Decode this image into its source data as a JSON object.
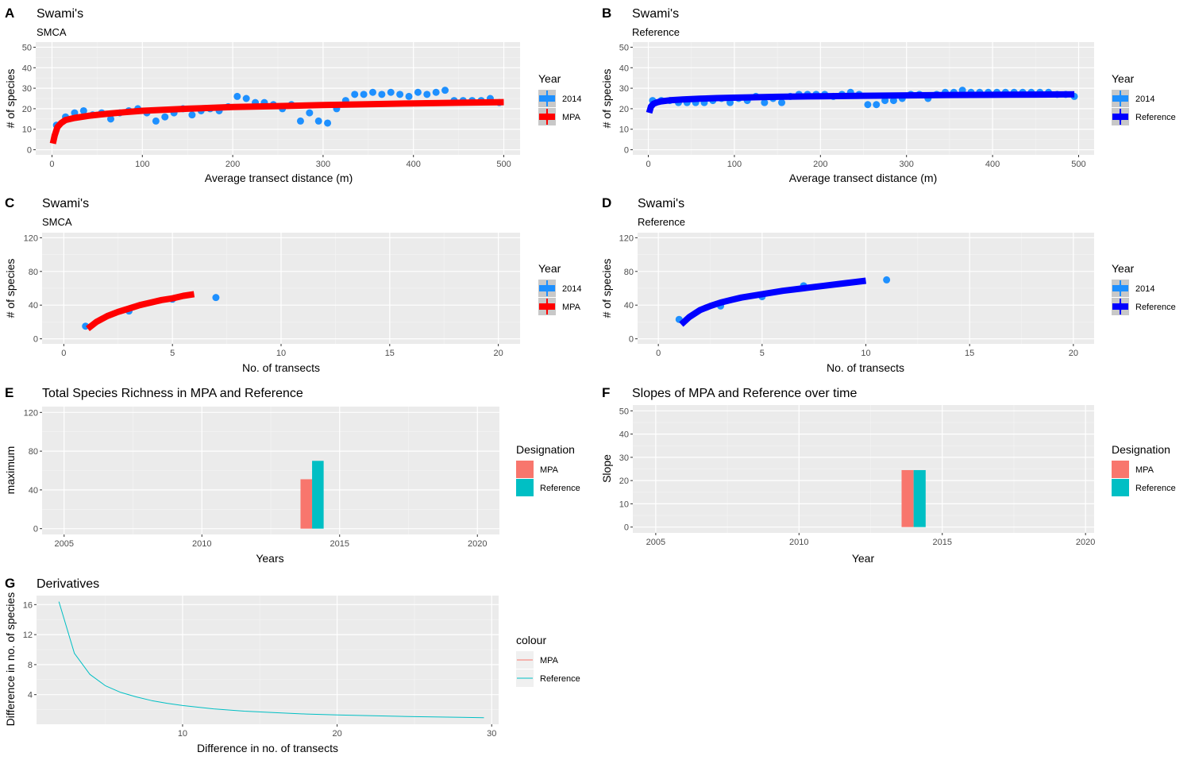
{
  "chart_data": [
    {
      "panel_tag": "A",
      "type": "scatter",
      "title": "Swami's",
      "subtitle": "SMCA",
      "xlabel": "Average transect distance (m)",
      "ylabel": "# of species",
      "xlim": [
        -18,
        518
      ],
      "ylim": [
        -2.5,
        52.5
      ],
      "xticks": [
        0,
        100,
        200,
        300,
        400,
        500
      ],
      "yticks": [
        0,
        10,
        20,
        30,
        40,
        50
      ],
      "grid": true,
      "legend": {
        "title": "Year",
        "placement": "right",
        "entries": [
          {
            "label": "2014",
            "color": "#1e90ff",
            "kind": "pointrange"
          },
          {
            "label": "MPA",
            "color": "#ff0000",
            "kind": "pointrange"
          }
        ]
      },
      "series": [
        {
          "name": "2014",
          "kind": "points",
          "color": "#1e90ff",
          "x": [
            5,
            15,
            25,
            35,
            45,
            55,
            65,
            75,
            85,
            95,
            105,
            115,
            125,
            135,
            145,
            155,
            165,
            175,
            185,
            195,
            205,
            215,
            225,
            235,
            245,
            255,
            265,
            275,
            285,
            295,
            305,
            315,
            325,
            335,
            345,
            355,
            365,
            375,
            385,
            395,
            405,
            415,
            425,
            435,
            445,
            455,
            465,
            475,
            485,
            495
          ],
          "y": [
            12,
            16,
            18,
            19,
            17,
            18,
            15,
            18,
            19,
            20,
            18,
            14,
            16,
            18,
            20,
            17,
            19,
            20,
            19,
            21,
            26,
            25,
            23,
            23,
            22,
            20,
            22,
            14,
            18,
            14,
            13,
            20,
            24,
            27,
            27,
            28,
            27,
            28,
            27,
            26,
            28,
            27,
            28,
            29,
            24,
            24,
            24,
            24,
            25,
            23
          ]
        },
        {
          "name": "MPA",
          "kind": "line",
          "color": "#ff0000",
          "x": [
            1,
            3,
            6,
            10,
            15,
            25,
            40,
            60,
            80,
            100,
            150,
            200,
            250,
            300,
            350,
            400,
            450,
            500
          ],
          "y": [
            3,
            7,
            11,
            13,
            14.5,
            15.5,
            16.5,
            17.5,
            18.3,
            19,
            20,
            20.8,
            21.3,
            21.8,
            22.2,
            22.6,
            22.9,
            23.2
          ]
        }
      ]
    },
    {
      "panel_tag": "B",
      "type": "scatter",
      "title": "Swami's",
      "subtitle": "Reference",
      "xlabel": "Average transect distance (m)",
      "ylabel": "# of species",
      "xlim": [
        -18,
        518
      ],
      "ylim": [
        -2.5,
        52.5
      ],
      "xticks": [
        0,
        100,
        200,
        300,
        400,
        500
      ],
      "yticks": [
        0,
        10,
        20,
        30,
        40,
        50
      ],
      "grid": true,
      "legend": {
        "title": "Year",
        "placement": "right",
        "entries": [
          {
            "label": "2014",
            "color": "#1e90ff",
            "kind": "pointrange"
          },
          {
            "label": "Reference",
            "color": "#0000ff",
            "kind": "pointrange"
          }
        ]
      },
      "series": [
        {
          "name": "2014",
          "kind": "points",
          "color": "#1e90ff",
          "x": [
            5,
            15,
            25,
            35,
            45,
            55,
            65,
            75,
            85,
            95,
            105,
            115,
            125,
            135,
            145,
            155,
            165,
            175,
            185,
            195,
            205,
            215,
            225,
            235,
            245,
            255,
            265,
            275,
            285,
            295,
            305,
            315,
            325,
            335,
            345,
            355,
            365,
            375,
            385,
            395,
            405,
            415,
            425,
            435,
            445,
            455,
            465,
            475,
            485,
            495
          ],
          "y": [
            24,
            24,
            24,
            23,
            23,
            23,
            23,
            24,
            25,
            23,
            25,
            24,
            26,
            23,
            25,
            23,
            26,
            27,
            27,
            27,
            27,
            26,
            27,
            28,
            27,
            22,
            22,
            24,
            24,
            25,
            27,
            27,
            25,
            27,
            28,
            28,
            29,
            28,
            28,
            28,
            28,
            28,
            28,
            28,
            28,
            28,
            28,
            27,
            27,
            26
          ]
        },
        {
          "name": "Reference",
          "kind": "line",
          "color": "#0000ff",
          "x": [
            1,
            3,
            6,
            10,
            15,
            25,
            40,
            60,
            80,
            100,
            150,
            200,
            250,
            300,
            350,
            400,
            450,
            495
          ],
          "y": [
            18,
            21,
            22.4,
            23.1,
            23.6,
            24.1,
            24.5,
            24.9,
            25.2,
            25.4,
            25.8,
            26.1,
            26.3,
            26.5,
            26.7,
            26.8,
            26.9,
            27
          ]
        }
      ]
    },
    {
      "panel_tag": "C",
      "type": "scatter",
      "title": "Swami's",
      "subtitle": "SMCA",
      "xlabel": "No. of transects",
      "ylabel": "# of species",
      "xlim": [
        -1,
        21
      ],
      "ylim": [
        -6,
        126
      ],
      "xticks": [
        0,
        5,
        10,
        15,
        20
      ],
      "yticks": [
        0,
        40,
        80,
        120
      ],
      "grid": true,
      "legend": {
        "title": "Year",
        "placement": "right",
        "entries": [
          {
            "label": "2014",
            "color": "#1e90ff",
            "kind": "pointrange"
          },
          {
            "label": "MPA",
            "color": "#ff0000",
            "kind": "pointrange"
          }
        ]
      },
      "series": [
        {
          "name": "2014",
          "kind": "points",
          "color": "#1e90ff",
          "x": [
            1,
            3,
            5,
            7
          ],
          "y": [
            15,
            33,
            47,
            49
          ]
        },
        {
          "name": "MPA",
          "kind": "line",
          "color": "#ff0000",
          "x": [
            1.1,
            1.5,
            2,
            2.5,
            3,
            3.5,
            4,
            4.5,
            5,
            5.5,
            6
          ],
          "y": [
            12,
            20,
            27,
            32,
            36,
            40,
            43,
            46,
            48,
            51,
            53
          ]
        }
      ]
    },
    {
      "panel_tag": "D",
      "type": "scatter",
      "title": "Swami's",
      "subtitle": "Reference",
      "xlabel": "No. of transects",
      "ylabel": "# of species",
      "xlim": [
        -1,
        21
      ],
      "ylim": [
        -6,
        126
      ],
      "xticks": [
        0,
        5,
        10,
        15,
        20
      ],
      "yticks": [
        0,
        40,
        80,
        120
      ],
      "grid": true,
      "legend": {
        "title": "Year",
        "placement": "right",
        "entries": [
          {
            "label": "2014",
            "color": "#1e90ff",
            "kind": "pointrange"
          },
          {
            "label": "Reference",
            "color": "#0000ff",
            "kind": "pointrange"
          }
        ]
      },
      "series": [
        {
          "name": "2014",
          "kind": "points",
          "color": "#1e90ff",
          "x": [
            1,
            3,
            5,
            7,
            11
          ],
          "y": [
            23,
            39,
            50,
            63,
            70
          ]
        },
        {
          "name": "Reference",
          "kind": "line",
          "color": "#0000ff",
          "x": [
            1.1,
            1.5,
            2,
            2.5,
            3,
            3.5,
            4,
            5,
            6,
            7,
            8,
            9,
            10
          ],
          "y": [
            17,
            26,
            34,
            39,
            43,
            46,
            49,
            53,
            57,
            60,
            63,
            66,
            69
          ]
        }
      ]
    },
    {
      "panel_tag": "E",
      "type": "bar",
      "title": "Total Species Richness in MPA and Reference",
      "xlabel": "Years",
      "ylabel": "maximum",
      "xlim": [
        2004.2,
        2020.8
      ],
      "ylim": [
        -6,
        126
      ],
      "xticks": [
        2005,
        2010,
        2015,
        2020
      ],
      "yticks": [
        0,
        40,
        80,
        120
      ],
      "grid": true,
      "legend": {
        "title": "Designation",
        "placement": "right",
        "entries": [
          {
            "label": "MPA",
            "color": "#f8766d",
            "kind": "fill"
          },
          {
            "label": "Reference",
            "color": "#00bfc4",
            "kind": "fill"
          }
        ]
      },
      "bars": [
        {
          "name": "MPA",
          "x": 2014,
          "value": 51,
          "color": "#f8766d"
        },
        {
          "name": "Reference",
          "x": 2014,
          "value": 70,
          "color": "#00bfc4"
        }
      ]
    },
    {
      "panel_tag": "F",
      "type": "bar",
      "title": "Slopes of MPA and Reference over time",
      "xlabel": "Year",
      "ylabel": "Slope",
      "xlim": [
        2004.2,
        2020.3
      ],
      "ylim": [
        -2.5,
        52.5
      ],
      "xticks": [
        2005,
        2010,
        2015,
        2020
      ],
      "yticks": [
        0,
        10,
        20,
        30,
        40,
        50
      ],
      "grid": true,
      "legend": {
        "title": "Designation",
        "placement": "right",
        "entries": [
          {
            "label": "MPA",
            "color": "#f8766d",
            "kind": "fill"
          },
          {
            "label": "Reference",
            "color": "#00bfc4",
            "kind": "fill"
          }
        ]
      },
      "bars": [
        {
          "name": "MPA",
          "x": 2014,
          "value": 24.5,
          "color": "#f8766d"
        },
        {
          "name": "Reference",
          "x": 2014,
          "value": 24.5,
          "color": "#00bfc4"
        }
      ]
    },
    {
      "panel_tag": "G",
      "type": "line",
      "title": "Derivatives",
      "xlabel": "Difference in no. of transects",
      "ylabel": "Difference in no. of species",
      "xlim": [
        0.55,
        30.45
      ],
      "ylim": [
        0.05,
        17.2
      ],
      "xticks": [
        10,
        20,
        30
      ],
      "yticks": [
        4,
        8,
        12,
        16
      ],
      "grid": true,
      "legend": {
        "title": "colour",
        "placement": "right",
        "entries": [
          {
            "label": "MPA",
            "color": "#f8766d",
            "kind": "line"
          },
          {
            "label": "Reference",
            "color": "#00bfc4",
            "kind": "line"
          }
        ]
      },
      "series": [
        {
          "name": "Reference",
          "kind": "line",
          "color": "#00bfc4",
          "x": [
            2,
            3,
            4,
            5,
            6,
            7,
            8,
            9,
            10,
            12,
            14,
            16,
            18,
            20,
            22,
            25,
            28,
            29.5
          ],
          "y": [
            16.4,
            9.5,
            6.7,
            5.2,
            4.3,
            3.7,
            3.2,
            2.85,
            2.55,
            2.1,
            1.8,
            1.6,
            1.42,
            1.3,
            1.2,
            1.07,
            0.97,
            0.93
          ]
        }
      ]
    }
  ]
}
